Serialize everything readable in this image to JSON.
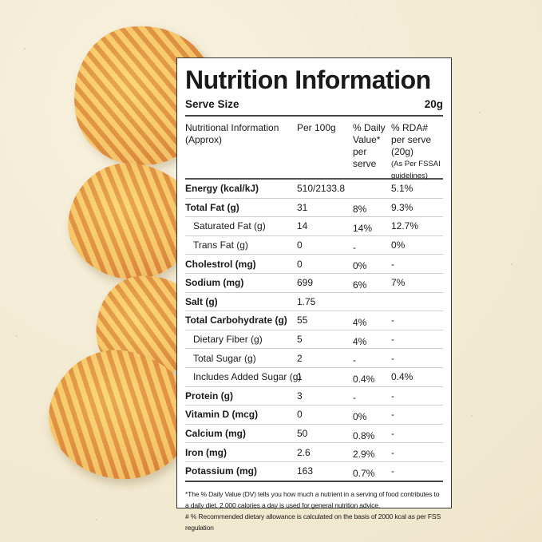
{
  "label": {
    "title": "Nutrition Information",
    "serve_size_label": "Serve Size",
    "serve_size_value": "20g",
    "columns": {
      "c1": "Nutritional Information (Approx)",
      "c2": "Per 100g",
      "c3": "% Daily Value* per serve",
      "c4": "% RDA# per serve (20g)",
      "c4_note": "(As Per FSSAI guidelines)"
    },
    "rows": [
      {
        "name": "Energy (kcal/kJ)",
        "per100": "510/2133.8",
        "dv": "",
        "rda": "5.1%",
        "style": "bold"
      },
      {
        "name": "Total Fat (g)",
        "per100": "31",
        "dv": "8%",
        "rda": "9.3%",
        "style": "bold"
      },
      {
        "name": "Saturated Fat (g)",
        "per100": "14",
        "dv": "14%",
        "rda": "12.7%",
        "style": "indent"
      },
      {
        "name": "Trans Fat (g)",
        "per100": "0",
        "dv": "-",
        "rda": "0%",
        "style": "indent"
      },
      {
        "name": "Cholestrol (mg)",
        "per100": "0",
        "dv": "0%",
        "rda": "-",
        "style": "bold"
      },
      {
        "name": "Sodium (mg)",
        "per100": "699",
        "dv": "6%",
        "rda": "7%",
        "style": "bold"
      },
      {
        "name": "Salt (g)",
        "per100": "1.75",
        "dv": "",
        "rda": "",
        "style": "bold"
      },
      {
        "name": "Total Carbohydrate (g)",
        "per100": "55",
        "dv": "4%",
        "rda": "-",
        "style": "bold"
      },
      {
        "name": "Dietary Fiber (g)",
        "per100": "5",
        "dv": "4%",
        "rda": "-",
        "style": "indent"
      },
      {
        "name": "Total Sugar (g)",
        "per100": "2",
        "dv": "-",
        "rda": "-",
        "style": "indent"
      },
      {
        "name": "Includes Added Sugar (g)",
        "per100": "1",
        "dv": "0.4%",
        "rda": "0.4%",
        "style": "indent"
      },
      {
        "name": "Protein (g)",
        "per100": "3",
        "dv": "-",
        "rda": "-",
        "style": "bold"
      },
      {
        "name": "Vitamin D (mcg)",
        "per100": "0",
        "dv": "0%",
        "rda": "-",
        "style": "bold"
      },
      {
        "name": "Calcium (mg)",
        "per100": "50",
        "dv": "0.8%",
        "rda": "-",
        "style": "bold"
      },
      {
        "name": "Iron (mg)",
        "per100": "2.6",
        "dv": "2.9%",
        "rda": "-",
        "style": "bold"
      },
      {
        "name": "Potassium (mg)",
        "per100": "163",
        "dv": "0.7%",
        "rda": "-",
        "style": "bold"
      }
    ],
    "footnote_1": "*The % Daily Value (DV) tells you how much a nutrient in a serving of food contributes to a daily diet. 2,000 calories a day is used for general nutrition advice.",
    "footnote_2": "# % Recommended dietary allowance  is calculated on the basis of 2000 kcal as per FSS regulation"
  },
  "colors": {
    "background": "#f2ead2",
    "chip": "#eaa24e",
    "label_bg": "#ffffff",
    "text": "#1a1a1a"
  }
}
